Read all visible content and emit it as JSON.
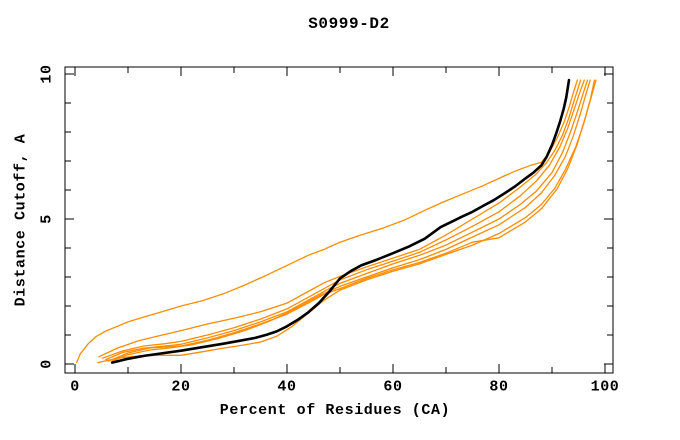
{
  "title": "S0999-D2",
  "colors": {
    "background": "#ffffff",
    "axis": "#000000",
    "curve_black": "#000000",
    "curve_orange": "#ff8c00"
  },
  "chart_data": {
    "type": "line",
    "title": "S0999-D2",
    "xlabel": "Percent of Residues (CA)",
    "ylabel": "Distance Cutoff, A",
    "xlim": [
      0,
      100
    ],
    "ylim": [
      0,
      10
    ],
    "x_major_ticks": [
      0,
      20,
      40,
      60,
      80,
      100
    ],
    "x_minor_step": 10,
    "y_major_ticks": [
      0,
      5,
      10
    ],
    "y_minor_step": 1,
    "grid": false,
    "legend_position": "none",
    "tick_style": "inward, mirrored on all four box edges",
    "series": [
      {
        "name": "black-curve",
        "color": "#000000",
        "width": 2.6,
        "points": [
          [
            7,
            0.05
          ],
          [
            10,
            0.18
          ],
          [
            13,
            0.28
          ],
          [
            16,
            0.36
          ],
          [
            20,
            0.46
          ],
          [
            24,
            0.58
          ],
          [
            28,
            0.7
          ],
          [
            31,
            0.8
          ],
          [
            34,
            0.9
          ],
          [
            36,
            1.0
          ],
          [
            38,
            1.12
          ],
          [
            40,
            1.3
          ],
          [
            42,
            1.52
          ],
          [
            44,
            1.78
          ],
          [
            46,
            2.1
          ],
          [
            48,
            2.5
          ],
          [
            50,
            2.95
          ],
          [
            52,
            3.2
          ],
          [
            54,
            3.4
          ],
          [
            57,
            3.6
          ],
          [
            60,
            3.82
          ],
          [
            63,
            4.05
          ],
          [
            66,
            4.32
          ],
          [
            69,
            4.72
          ],
          [
            71,
            4.9
          ],
          [
            73,
            5.08
          ],
          [
            75,
            5.25
          ],
          [
            77,
            5.45
          ],
          [
            79,
            5.65
          ],
          [
            81,
            5.88
          ],
          [
            83,
            6.12
          ],
          [
            85,
            6.4
          ],
          [
            86.5,
            6.6
          ],
          [
            88,
            6.85
          ],
          [
            89,
            7.15
          ],
          [
            90,
            7.55
          ],
          [
            90.8,
            7.95
          ],
          [
            91.5,
            8.35
          ],
          [
            92.2,
            8.8
          ],
          [
            92.7,
            9.2
          ],
          [
            93,
            9.55
          ],
          [
            93.2,
            9.79
          ]
        ]
      },
      {
        "name": "orange-curve-1",
        "color": "#ff8c00",
        "width": 1.3,
        "points": [
          [
            0.3,
            0.05
          ],
          [
            1,
            0.35
          ],
          [
            2.5,
            0.7
          ],
          [
            4,
            0.95
          ],
          [
            6,
            1.15
          ],
          [
            8,
            1.3
          ],
          [
            10,
            1.45
          ],
          [
            13,
            1.62
          ],
          [
            16,
            1.78
          ],
          [
            20,
            2.0
          ],
          [
            24,
            2.18
          ],
          [
            28,
            2.42
          ],
          [
            32,
            2.72
          ],
          [
            36,
            3.05
          ],
          [
            40,
            3.4
          ],
          [
            44,
            3.75
          ],
          [
            47,
            3.95
          ],
          [
            50,
            4.2
          ],
          [
            54,
            4.45
          ],
          [
            58,
            4.68
          ],
          [
            62,
            4.95
          ],
          [
            66,
            5.3
          ],
          [
            69,
            5.55
          ],
          [
            73,
            5.85
          ],
          [
            77,
            6.15
          ],
          [
            80,
            6.4
          ],
          [
            83,
            6.65
          ],
          [
            86,
            6.85
          ],
          [
            88,
            6.95
          ],
          [
            89.5,
            7.3
          ],
          [
            91,
            7.8
          ],
          [
            92.3,
            8.35
          ],
          [
            93.3,
            8.9
          ],
          [
            94.1,
            9.4
          ],
          [
            94.8,
            9.79
          ]
        ]
      },
      {
        "name": "orange-curve-2",
        "color": "#ff8c00",
        "width": 1.3,
        "points": [
          [
            4.5,
            0.25
          ],
          [
            8,
            0.55
          ],
          [
            12,
            0.8
          ],
          [
            16,
            0.98
          ],
          [
            20,
            1.15
          ],
          [
            25,
            1.38
          ],
          [
            30,
            1.58
          ],
          [
            35,
            1.8
          ],
          [
            40,
            2.1
          ],
          [
            44,
            2.5
          ],
          [
            47,
            2.8
          ],
          [
            50,
            3.02
          ],
          [
            55,
            3.35
          ],
          [
            60,
            3.65
          ],
          [
            65,
            3.95
          ],
          [
            70,
            4.45
          ],
          [
            75,
            5.0
          ],
          [
            80,
            5.55
          ],
          [
            84,
            6.1
          ],
          [
            87,
            6.55
          ],
          [
            89,
            6.95
          ],
          [
            90.5,
            7.35
          ],
          [
            92,
            7.9
          ],
          [
            93.2,
            8.5
          ],
          [
            94.2,
            9.1
          ],
          [
            94.9,
            9.5
          ],
          [
            95.4,
            9.79
          ]
        ]
      },
      {
        "name": "orange-curve-3",
        "color": "#ff8c00",
        "width": 1.3,
        "points": [
          [
            5.2,
            0.2
          ],
          [
            9,
            0.45
          ],
          [
            13,
            0.62
          ],
          [
            17,
            0.7
          ],
          [
            20,
            0.78
          ],
          [
            25,
            1.0
          ],
          [
            30,
            1.25
          ],
          [
            35,
            1.55
          ],
          [
            40,
            1.9
          ],
          [
            44,
            2.3
          ],
          [
            47,
            2.6
          ],
          [
            50,
            2.9
          ],
          [
            55,
            3.25
          ],
          [
            60,
            3.55
          ],
          [
            65,
            3.85
          ],
          [
            70,
            4.28
          ],
          [
            75,
            4.75
          ],
          [
            80,
            5.25
          ],
          [
            84,
            5.8
          ],
          [
            87,
            6.3
          ],
          [
            89.5,
            6.85
          ],
          [
            91.5,
            7.5
          ],
          [
            93,
            8.15
          ],
          [
            94.3,
            8.85
          ],
          [
            95.4,
            9.45
          ],
          [
            96.1,
            9.79
          ]
        ]
      },
      {
        "name": "orange-curve-4",
        "color": "#ff8c00",
        "width": 1.3,
        "points": [
          [
            5.8,
            0.15
          ],
          [
            9,
            0.4
          ],
          [
            13,
            0.55
          ],
          [
            17,
            0.62
          ],
          [
            20,
            0.68
          ],
          [
            25,
            0.9
          ],
          [
            30,
            1.15
          ],
          [
            35,
            1.45
          ],
          [
            40,
            1.8
          ],
          [
            45,
            2.3
          ],
          [
            48,
            2.6
          ],
          [
            50,
            2.78
          ],
          [
            55,
            3.12
          ],
          [
            60,
            3.45
          ],
          [
            65,
            3.75
          ],
          [
            70,
            4.1
          ],
          [
            75,
            4.55
          ],
          [
            80,
            5.0
          ],
          [
            84,
            5.5
          ],
          [
            87,
            5.95
          ],
          [
            90,
            6.6
          ],
          [
            92,
            7.3
          ],
          [
            93.5,
            8.0
          ],
          [
            94.8,
            8.7
          ],
          [
            96,
            9.4
          ],
          [
            96.7,
            9.79
          ]
        ]
      },
      {
        "name": "orange-curve-5",
        "color": "#ff8c00",
        "width": 1.3,
        "points": [
          [
            7,
            0.1
          ],
          [
            10,
            0.32
          ],
          [
            14,
            0.48
          ],
          [
            18,
            0.56
          ],
          [
            22,
            0.66
          ],
          [
            27,
            0.88
          ],
          [
            32,
            1.15
          ],
          [
            37,
            1.5
          ],
          [
            42,
            1.95
          ],
          [
            46,
            2.35
          ],
          [
            50,
            2.68
          ],
          [
            55,
            3.0
          ],
          [
            60,
            3.32
          ],
          [
            65,
            3.6
          ],
          [
            70,
            3.95
          ],
          [
            75,
            4.38
          ],
          [
            80,
            4.8
          ],
          [
            85,
            5.4
          ],
          [
            88,
            5.9
          ],
          [
            90.5,
            6.5
          ],
          [
            92.5,
            7.15
          ],
          [
            94,
            7.85
          ],
          [
            95.3,
            8.6
          ],
          [
            96.4,
            9.3
          ],
          [
            97.2,
            9.79
          ]
        ]
      },
      {
        "name": "orange-curve-6",
        "color": "#ff8c00",
        "width": 1.3,
        "points": [
          [
            4.3,
            0.05
          ],
          [
            8,
            0.2
          ],
          [
            12,
            0.28
          ],
          [
            16,
            0.3
          ],
          [
            20,
            0.3
          ],
          [
            24,
            0.42
          ],
          [
            28,
            0.55
          ],
          [
            32,
            0.66
          ],
          [
            35,
            0.76
          ],
          [
            38,
            0.95
          ],
          [
            41,
            1.3
          ],
          [
            44,
            1.75
          ],
          [
            47,
            2.2
          ],
          [
            50,
            2.55
          ],
          [
            55,
            2.9
          ],
          [
            60,
            3.2
          ],
          [
            65,
            3.45
          ],
          [
            70,
            3.78
          ],
          [
            75,
            4.1
          ],
          [
            80,
            4.5
          ],
          [
            85,
            5.05
          ],
          [
            88,
            5.5
          ],
          [
            90.5,
            6.05
          ],
          [
            92.5,
            6.7
          ],
          [
            94.5,
            7.5
          ],
          [
            96,
            8.3
          ],
          [
            97.2,
            9.1
          ],
          [
            98,
            9.79
          ]
        ]
      },
      {
        "name": "orange-curve-7",
        "color": "#ff8c00",
        "width": 1.3,
        "points": [
          [
            6.3,
            0.1
          ],
          [
            10,
            0.38
          ],
          [
            14,
            0.55
          ],
          [
            18,
            0.6
          ],
          [
            20,
            0.62
          ],
          [
            25,
            0.82
          ],
          [
            30,
            1.08
          ],
          [
            35,
            1.38
          ],
          [
            40,
            1.72
          ],
          [
            44,
            2.1
          ],
          [
            47,
            2.4
          ],
          [
            50,
            2.6
          ],
          [
            55,
            2.95
          ],
          [
            60,
            3.25
          ],
          [
            65,
            3.5
          ],
          [
            70,
            3.82
          ],
          [
            75,
            4.2
          ],
          [
            80,
            4.35
          ],
          [
            85,
            4.9
          ],
          [
            88,
            5.35
          ],
          [
            91,
            6.05
          ],
          [
            93,
            6.75
          ],
          [
            94.8,
            7.6
          ],
          [
            96.2,
            8.45
          ],
          [
            97.4,
            9.2
          ],
          [
            98.3,
            9.79
          ]
        ]
      }
    ]
  }
}
